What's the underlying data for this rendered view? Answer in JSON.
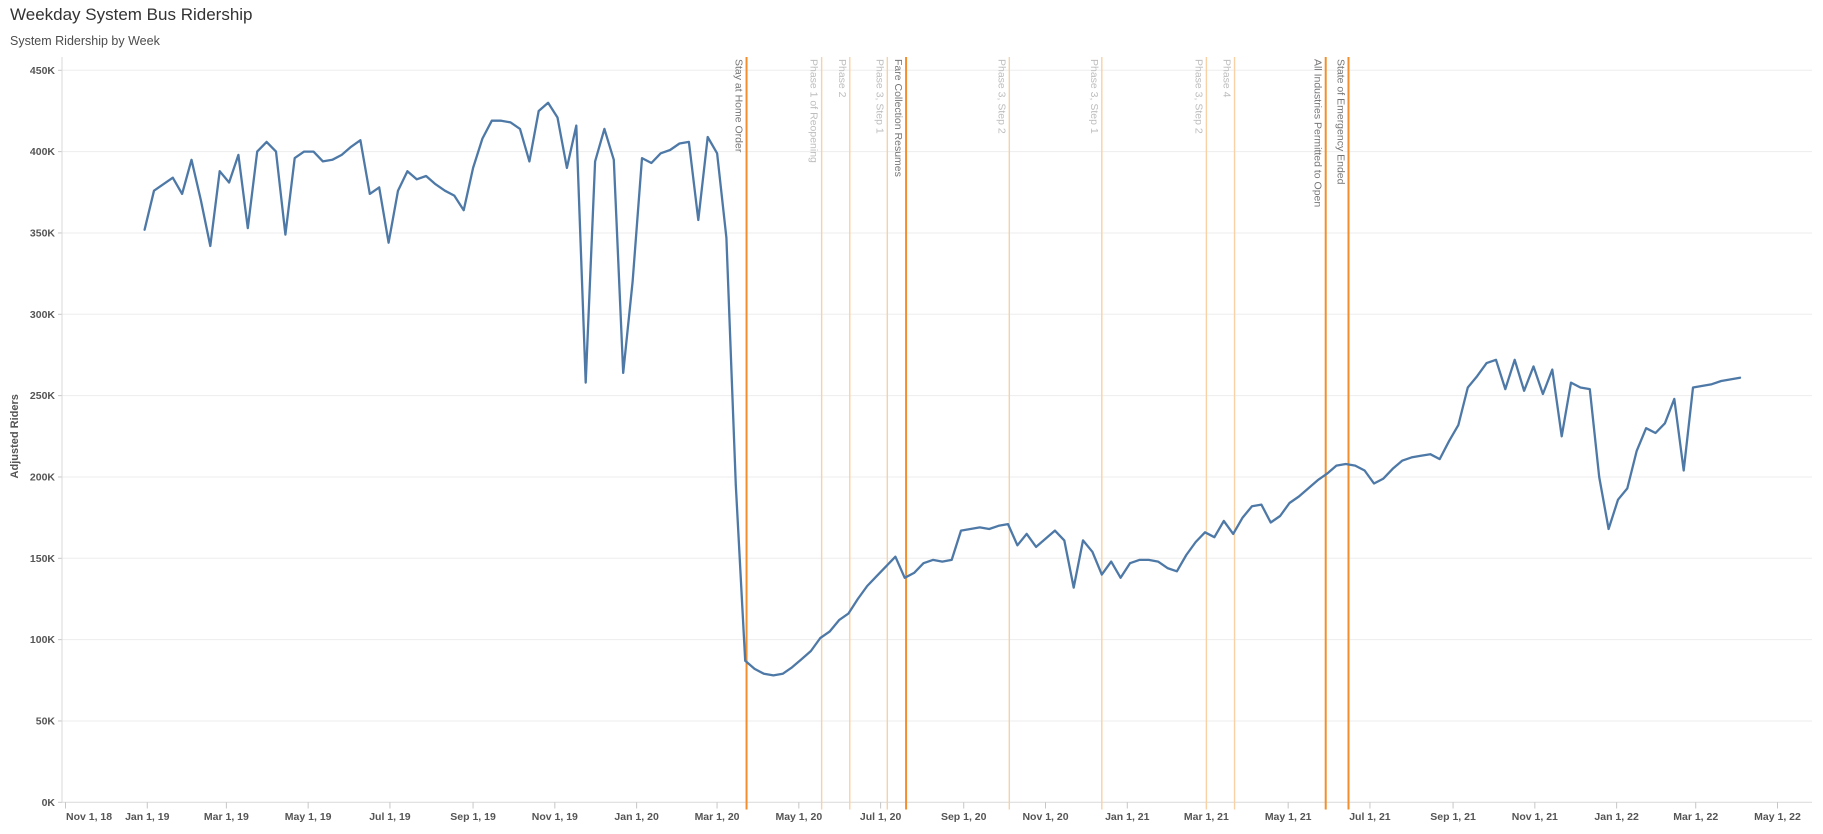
{
  "page": {
    "title": "Weekday System Bus Ridership",
    "subtitle": "System Ridership by Week"
  },
  "colors": {
    "line": "#4e79a7",
    "grid": "#ededed",
    "axis_line": "#d9d9d9",
    "tick": "#c6c6c6",
    "axis_text": "#555555",
    "ref_strong": "#f28e2b",
    "ref_light": "#f8d2a4",
    "ref_label_strong": "#757575",
    "ref_label_light": "#bdbdbd"
  },
  "chart_data": {
    "type": "line",
    "title": "System Ridership by Week",
    "xlabel": "",
    "ylabel": "Adjusted Riders",
    "legend": "none",
    "grid": "horizontal",
    "ylim": [
      0,
      450
    ],
    "y_units": "thousands of riders",
    "y_ticks": [
      {
        "value": 0,
        "label": "0K"
      },
      {
        "value": 50,
        "label": "50K"
      },
      {
        "value": 100,
        "label": "100K"
      },
      {
        "value": 150,
        "label": "150K"
      },
      {
        "value": 200,
        "label": "200K"
      },
      {
        "value": 250,
        "label": "250K"
      },
      {
        "value": 300,
        "label": "300K"
      },
      {
        "value": 350,
        "label": "350K"
      },
      {
        "value": 400,
        "label": "400K"
      },
      {
        "value": 450,
        "label": "450K"
      }
    ],
    "x_axis": {
      "start": "2018-11-01",
      "end": "2022-05-01",
      "ticks": [
        {
          "date": "2018-11-01",
          "label": "Nov 1, 18"
        },
        {
          "date": "2019-01-01",
          "label": "Jan 1, 19"
        },
        {
          "date": "2019-03-01",
          "label": "Mar 1, 19"
        },
        {
          "date": "2019-05-01",
          "label": "May 1, 19"
        },
        {
          "date": "2019-07-01",
          "label": "Jul 1, 19"
        },
        {
          "date": "2019-09-01",
          "label": "Sep 1, 19"
        },
        {
          "date": "2019-11-01",
          "label": "Nov 1, 19"
        },
        {
          "date": "2020-01-01",
          "label": "Jan 1, 20"
        },
        {
          "date": "2020-03-01",
          "label": "Mar 1, 20"
        },
        {
          "date": "2020-05-01",
          "label": "May 1, 20"
        },
        {
          "date": "2020-07-01",
          "label": "Jul 1, 20"
        },
        {
          "date": "2020-09-01",
          "label": "Sep 1, 20"
        },
        {
          "date": "2020-11-01",
          "label": "Nov 1, 20"
        },
        {
          "date": "2021-01-01",
          "label": "Jan 1, 21"
        },
        {
          "date": "2021-03-01",
          "label": "Mar 1, 21"
        },
        {
          "date": "2021-05-01",
          "label": "May 1, 21"
        },
        {
          "date": "2021-07-01",
          "label": "Jul 1, 21"
        },
        {
          "date": "2021-09-01",
          "label": "Sep 1, 21"
        },
        {
          "date": "2021-11-01",
          "label": "Nov 1, 21"
        },
        {
          "date": "2022-01-01",
          "label": "Jan 1, 22"
        },
        {
          "date": "2022-03-01",
          "label": "Mar 1, 22"
        },
        {
          "date": "2022-05-01",
          "label": "May 1, 22"
        }
      ]
    },
    "reference_lines": [
      {
        "date": "2020-03-23",
        "label": "Stay at Home Order",
        "style": "strong"
      },
      {
        "date": "2020-05-18",
        "label": "Phase 1 of Reopening",
        "style": "light"
      },
      {
        "date": "2020-06-08",
        "label": "Phase 2",
        "style": "light"
      },
      {
        "date": "2020-07-06",
        "label": "Phase 3, Step 1",
        "style": "light"
      },
      {
        "date": "2020-07-20",
        "label": "Fare Collection Resumes",
        "style": "strong"
      },
      {
        "date": "2020-10-05",
        "label": "Phase 3, Step 2",
        "style": "light"
      },
      {
        "date": "2020-12-13",
        "label": "Phase 3, Step 1",
        "style": "light"
      },
      {
        "date": "2021-03-01",
        "label": "Phase 3, Step 2",
        "style": "light"
      },
      {
        "date": "2021-03-22",
        "label": "Phase 4",
        "style": "light"
      },
      {
        "date": "2021-05-29",
        "label": "All Industries Permitted to Open",
        "style": "strong"
      },
      {
        "date": "2021-06-15",
        "label": "State of Emergency Ended",
        "style": "strong"
      }
    ],
    "weekly": {
      "series_name": "Adjusted Riders",
      "start": "2018-12-30",
      "interval_days": 7,
      "riders_thousands": [
        352,
        376,
        380,
        384,
        374,
        395,
        370,
        342,
        388,
        381,
        398,
        353,
        400,
        406,
        400,
        349,
        396,
        400,
        400,
        394,
        395,
        398,
        403,
        407,
        374,
        378,
        344,
        376,
        388,
        383,
        385,
        380,
        376,
        373,
        364,
        390,
        408,
        419,
        419,
        418,
        414,
        394,
        425,
        430,
        421,
        390,
        416,
        258,
        394,
        414,
        395,
        264,
        320,
        396,
        393,
        399,
        401,
        405,
        406,
        358,
        409,
        399,
        347,
        195,
        87,
        82,
        79,
        78,
        79,
        83,
        88,
        93,
        101,
        105,
        112,
        116,
        125,
        133,
        139,
        145,
        151,
        138,
        141,
        147,
        149,
        148,
        149,
        167,
        168,
        169,
        168,
        170,
        171,
        158,
        165,
        157,
        162,
        167,
        161,
        132,
        161,
        154,
        140,
        148,
        138,
        147,
        149,
        149,
        148,
        144,
        142,
        152,
        160,
        166,
        163,
        173,
        165,
        175,
        182,
        183,
        172,
        176,
        184,
        188,
        193,
        198,
        202,
        207,
        208,
        207,
        204,
        196,
        199,
        205,
        210,
        212,
        213,
        214,
        211,
        222,
        232,
        255,
        262,
        270,
        272,
        254,
        272,
        253,
        268,
        251,
        266,
        225,
        258,
        255,
        254,
        200,
        168,
        186,
        193,
        216,
        230,
        227,
        233,
        248,
        204,
        255,
        256,
        257,
        259,
        260,
        261
      ]
    }
  }
}
